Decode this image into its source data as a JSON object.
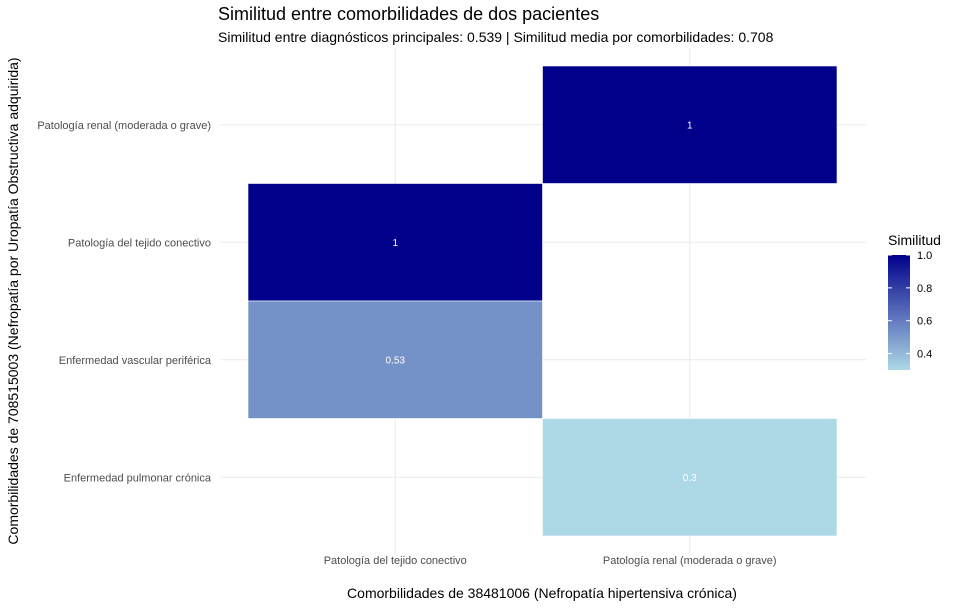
{
  "chart_data": {
    "type": "heatmap",
    "title": "Similitud entre comorbilidades de dos pacientes",
    "subtitle": "Similitud entre diagnósticos principales: 0.539   |   Similitud media por comorbilidades: 0.708",
    "xlabel": "Comorbilidades de 38481006 (Nefropatía hipertensiva crónica)",
    "ylabel": "Comorbilidades de 708515003 (Nefropatía por Uropatía Obstructiva adquirida)",
    "x_categories": [
      "Patología del tejido conectivo",
      "Patología renal (moderada o grave)"
    ],
    "y_categories": [
      "Enfermedad pulmonar crónica",
      "Enfermedad vascular periférica",
      "Patología del tejido conectivo",
      "Patología renal (moderada o grave)"
    ],
    "cells": [
      {
        "x": "Patología renal (moderada o grave)",
        "y": "Patología renal (moderada o grave)",
        "value": 1,
        "label": "1"
      },
      {
        "x": "Patología del tejido conectivo",
        "y": "Patología del tejido conectivo",
        "value": 1,
        "label": "1"
      },
      {
        "x": "Patología del tejido conectivo",
        "y": "Enfermedad vascular periférica",
        "value": 0.53,
        "label": "0.53"
      },
      {
        "x": "Patología renal (moderada o grave)",
        "y": "Enfermedad pulmonar crónica",
        "value": 0.3,
        "label": "0.3"
      }
    ],
    "legend": {
      "title": "Similitud",
      "ticks": [
        "1.0",
        "0.8",
        "0.6",
        "0.4"
      ],
      "tick_values": [
        1.0,
        0.8,
        0.6,
        0.4
      ],
      "range": [
        0.3,
        1.0
      ],
      "low_color": "#add8e6",
      "high_color": "#00008b"
    },
    "grid": true,
    "legend_position": "right"
  }
}
